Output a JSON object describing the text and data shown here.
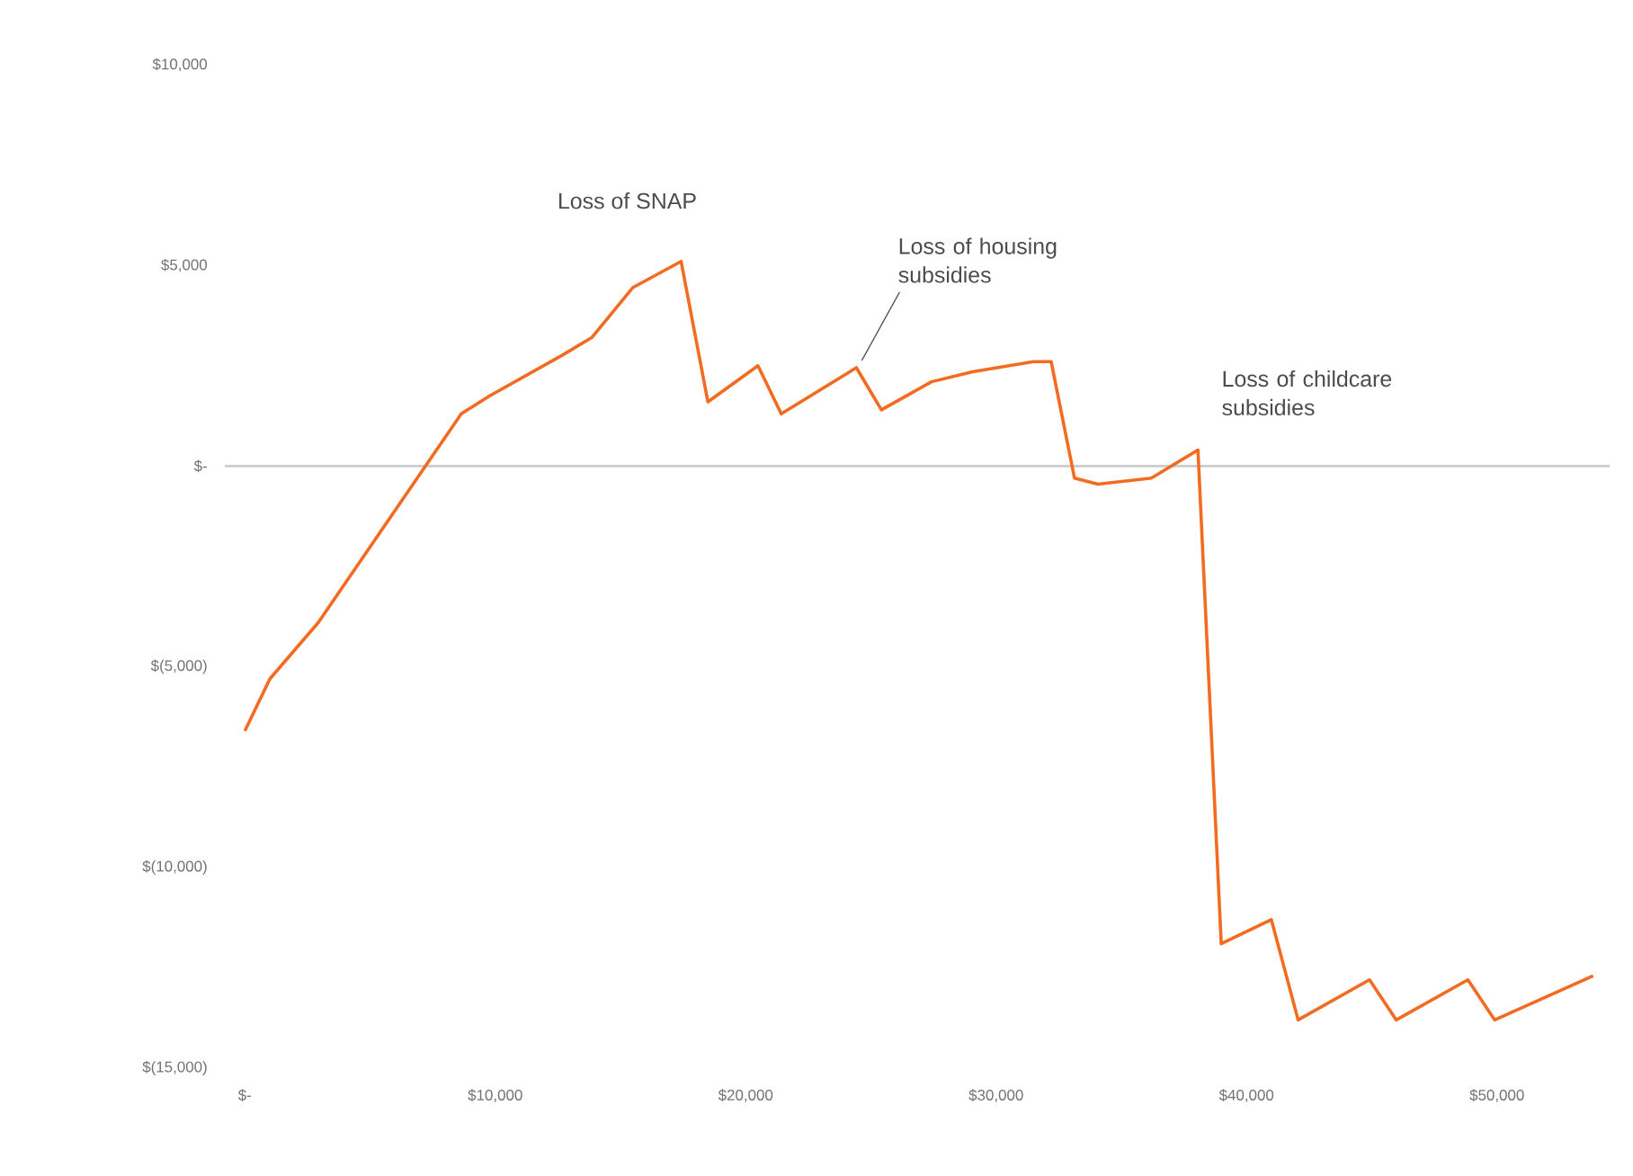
{
  "chart_data": {
    "type": "line",
    "x": [
      0,
      1000,
      2930,
      8640,
      9780,
      12640,
      13850,
      15500,
      17420,
      18490,
      20490,
      21420,
      24420,
      25420,
      27420,
      29060,
      31490,
      32200,
      33130,
      34060,
      36200,
      38060,
      38990,
      40990,
      42060,
      44910,
      45980,
      48840,
      49910,
      53840
    ],
    "series": [
      {
        "color": "#f26b21",
        "values": [
          -6600,
          -5300,
          -3900,
          1300,
          1750,
          2750,
          3200,
          4450,
          5100,
          1600,
          2500,
          1300,
          2450,
          1400,
          2100,
          2350,
          2600,
          2600,
          -300,
          -450,
          -300,
          400,
          -11900,
          -11300,
          -13800,
          -12800,
          -13800,
          -12800,
          -13800,
          -12700
        ]
      }
    ],
    "xlim": [
      -800,
      54500
    ],
    "ylim": [
      -15000,
      10000
    ],
    "xticks": [
      {
        "value": 0,
        "label": "$-"
      },
      {
        "value": 10000,
        "label": "$10,000"
      },
      {
        "value": 20000,
        "label": "$20,000"
      },
      {
        "value": 30000,
        "label": "$30,000"
      },
      {
        "value": 40000,
        "label": "$40,000"
      },
      {
        "value": 50000,
        "label": "$50,000"
      }
    ],
    "yticks": [
      {
        "value": -15000,
        "label": "$(15,000)"
      },
      {
        "value": -10000,
        "label": "$(10,000)"
      },
      {
        "value": -5000,
        "label": "$(5,000)"
      },
      {
        "value": 0,
        "label": "$-"
      },
      {
        "value": 5000,
        "label": "$5,000"
      },
      {
        "value": 10000,
        "label": "$10,000"
      }
    ],
    "ref_lines": [
      {
        "axis": "y",
        "value": 0,
        "color": "#cccccc"
      }
    ],
    "annotations": [
      {
        "text": "Loss of SNAP",
        "x": 17420,
        "y": 5100
      },
      {
        "text": "Loss of housing subsidies",
        "x": 24420,
        "y": 2450
      },
      {
        "text": "Loss of childcare subsidies",
        "x": 38060,
        "y": 400
      }
    ],
    "grid": false,
    "marker": "none",
    "line_style": "solid"
  }
}
